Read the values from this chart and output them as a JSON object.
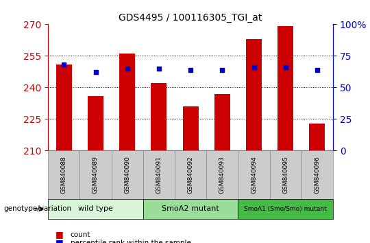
{
  "title": "GDS4495 / 100116305_TGI_at",
  "samples": [
    "GSM840088",
    "GSM840089",
    "GSM840090",
    "GSM840091",
    "GSM840092",
    "GSM840093",
    "GSM840094",
    "GSM840095",
    "GSM840096"
  ],
  "counts": [
    251,
    236,
    256,
    242,
    231,
    237,
    263,
    269,
    223
  ],
  "percentiles": [
    68,
    62,
    65,
    65,
    64,
    64,
    66,
    66,
    64
  ],
  "ylim_left": [
    210,
    270
  ],
  "yticks_left": [
    210,
    225,
    240,
    255,
    270
  ],
  "ylim_right": [
    0,
    100
  ],
  "yticks_right": [
    0,
    25,
    50,
    75,
    100
  ],
  "bar_color": "#cc0000",
  "dot_color": "#0000cc",
  "groups": [
    {
      "label": "wild type",
      "start": 0,
      "end": 3,
      "color": "#d9f5d9"
    },
    {
      "label": "SmoA2 mutant",
      "start": 3,
      "end": 6,
      "color": "#99dd99"
    },
    {
      "label": "SmoA1 (Smo/Smo) mutant",
      "start": 6,
      "end": 9,
      "color": "#44bb44"
    }
  ],
  "genotype_label": "genotype/variation",
  "legend_count": "count",
  "legend_percentile": "percentile rank within the sample",
  "bar_width": 0.5,
  "tick_label_color_left": "#cc0000",
  "tick_label_color_right": "#0000cc",
  "sample_box_color": "#cccccc",
  "sample_box_edge": "#888888"
}
